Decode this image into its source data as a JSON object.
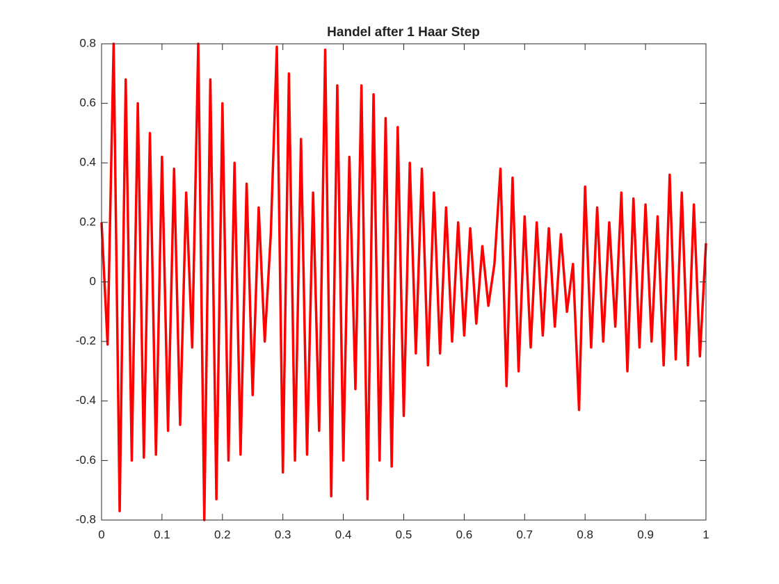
{
  "chart_data": {
    "type": "line",
    "title": "Handel after 1 Haar Step",
    "x": [
      0,
      0.01,
      0.02,
      0.03,
      0.04,
      0.05,
      0.06,
      0.07,
      0.08,
      0.09,
      0.1,
      0.11,
      0.12,
      0.13,
      0.14,
      0.15,
      0.16,
      0.17,
      0.18,
      0.19,
      0.2,
      0.21,
      0.22,
      0.23,
      0.24,
      0.25,
      0.26,
      0.27,
      0.28,
      0.29,
      0.3,
      0.31,
      0.32,
      0.33,
      0.34,
      0.35,
      0.36,
      0.37,
      0.38,
      0.39,
      0.4,
      0.41,
      0.42,
      0.43,
      0.44,
      0.45,
      0.46,
      0.47,
      0.48,
      0.49,
      0.5,
      0.51,
      0.52,
      0.53,
      0.54,
      0.55,
      0.56,
      0.57,
      0.58,
      0.59,
      0.6,
      0.61,
      0.62,
      0.63,
      0.64,
      0.65,
      0.66,
      0.67,
      0.68,
      0.69,
      0.7,
      0.71,
      0.72,
      0.73,
      0.74,
      0.75,
      0.76,
      0.77,
      0.78,
      0.79,
      0.8,
      0.81,
      0.82,
      0.83,
      0.84,
      0.85,
      0.86,
      0.87,
      0.88,
      0.89,
      0.9,
      0.91,
      0.92,
      0.93,
      0.94,
      0.95,
      0.96,
      0.97,
      0.98,
      0.99,
      1
    ],
    "series": [
      {
        "color": "#ff0000",
        "values": [
          0.2,
          -0.21,
          0.8,
          -0.77,
          0.68,
          -0.6,
          0.6,
          -0.59,
          0.5,
          -0.58,
          0.42,
          -0.5,
          0.38,
          -0.48,
          0.3,
          -0.22,
          0.8,
          -0.8,
          0.68,
          -0.73,
          0.6,
          -0.6,
          0.4,
          -0.58,
          0.33,
          -0.38,
          0.25,
          -0.2,
          0.16,
          0.79,
          -0.64,
          0.7,
          -0.6,
          0.48,
          -0.58,
          0.3,
          -0.5,
          0.78,
          -0.72,
          0.66,
          -0.6,
          0.42,
          -0.36,
          0.66,
          -0.73,
          0.63,
          -0.6,
          0.55,
          -0.62,
          0.52,
          -0.45,
          0.4,
          -0.24,
          0.38,
          -0.28,
          0.3,
          -0.24,
          0.25,
          -0.2,
          0.2,
          -0.18,
          0.18,
          -0.14,
          0.12,
          -0.08,
          0.06,
          0.38,
          -0.35,
          0.35,
          -0.3,
          0.22,
          -0.22,
          0.2,
          -0.18,
          0.18,
          -0.15,
          0.16,
          -0.1,
          0.06,
          -0.43,
          0.32,
          -0.22,
          0.25,
          -0.2,
          0.2,
          -0.15,
          0.3,
          -0.3,
          0.28,
          -0.22,
          0.26,
          -0.2,
          0.22,
          -0.28,
          0.36,
          -0.26,
          0.3,
          -0.28,
          0.26,
          -0.25,
          0.13
        ]
      }
    ],
    "xlim": [
      0,
      1
    ],
    "xticks": [
      0,
      0.1,
      0.2,
      0.3,
      0.4,
      0.5,
      0.6,
      0.7,
      0.8,
      0.9,
      1
    ],
    "ylim": [
      -0.8,
      0.8
    ],
    "yticks": [
      -0.8,
      -0.6,
      -0.4,
      -0.2,
      0,
      0.2,
      0.4,
      0.6,
      0.8
    ],
    "grid": false
  }
}
